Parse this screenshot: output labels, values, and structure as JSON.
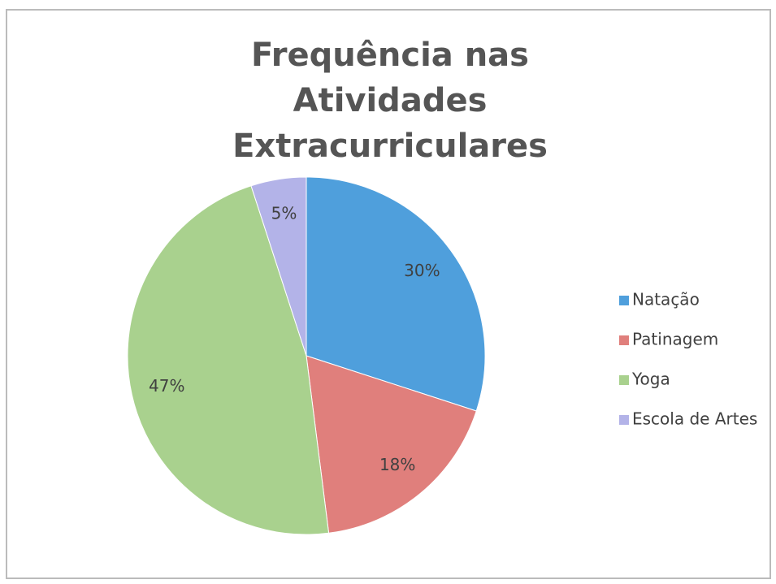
{
  "chart_data": {
    "type": "pie",
    "title": "Frequência nas Atividades Extracurriculares",
    "categories": [
      "Natação",
      "Patinagem",
      "Yoga",
      "Escola de Artes"
    ],
    "values": [
      30,
      18,
      47,
      5
    ],
    "value_labels": [
      "30%",
      "18%",
      "47%",
      "5%"
    ],
    "colors": [
      "#4f9fdc",
      "#e07f7c",
      "#a9d18e",
      "#b3b3e8"
    ],
    "legend": "right"
  }
}
